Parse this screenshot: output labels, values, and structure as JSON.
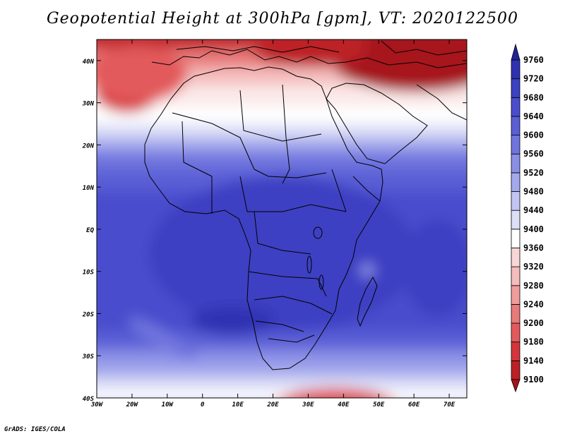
{
  "title": "Geopotential Height at 300hPa [gpm], VT: 2020122500",
  "credit": "GrADS: IGES/COLA",
  "chart_data": {
    "type": "heatmap",
    "variable": "Geopotential Height at 300hPa",
    "units": "gpm",
    "valid_time": "2020122500",
    "lon_range": [
      -30,
      75
    ],
    "lat_range": [
      -40,
      45
    ],
    "x_ticks": [
      "30W",
      "20W",
      "10W",
      "0",
      "10E",
      "20E",
      "30E",
      "40E",
      "50E",
      "60E",
      "70E"
    ],
    "y_ticks": [
      "40S",
      "30S",
      "20S",
      "10S",
      "EQ",
      "10N",
      "20N",
      "30N",
      "40N"
    ],
    "colorbar": {
      "levels": [
        9100,
        9140,
        9180,
        9200,
        9240,
        9280,
        9320,
        9360,
        9400,
        9440,
        9480,
        9520,
        9560,
        9600,
        9640,
        9680,
        9720,
        9760
      ],
      "colors": [
        "#a6141b",
        "#bc2026",
        "#d4353b",
        "#e35a5c",
        "#e87a7a",
        "#ef9c9b",
        "#f4bcbb",
        "#f8d6d6",
        "#ffffff",
        "#dddff7",
        "#c2c5f3",
        "#a4a8ec",
        "#8a8fe6",
        "#6f74de",
        "#5a5fd6",
        "#4a4ecd",
        "#3c40c2",
        "#2e32b2",
        "#20229a"
      ],
      "extend": "both"
    }
  }
}
